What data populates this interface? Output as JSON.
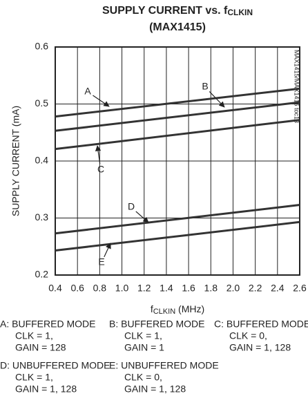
{
  "chart_data": {
    "type": "line",
    "title": [
      "SUPPLY CURRENT vs. f",
      "CLKIN"
    ],
    "subtitle": "(MAX1415)",
    "side_note": "MAX1415/MAX1416 toc13",
    "ylabel": "SUPPLY CURRENT (mA)",
    "xlabel": [
      "f",
      "CLKIN",
      " (MHz)"
    ],
    "x": [
      0.4,
      2.6
    ],
    "series": [
      {
        "name": "A",
        "color": "#333333",
        "values": [
          0.478,
          0.527
        ]
      },
      {
        "name": "B",
        "color": "#333333",
        "values": [
          0.453,
          0.503
        ]
      },
      {
        "name": "C",
        "color": "#333333",
        "values": [
          0.421,
          0.472
        ]
      },
      {
        "name": "D",
        "color": "#333333",
        "values": [
          0.273,
          0.323
        ]
      },
      {
        "name": "E",
        "color": "#333333",
        "values": [
          0.243,
          0.293
        ]
      }
    ],
    "xlim": [
      0.4,
      2.6
    ],
    "xticks": [
      0.4,
      0.6,
      0.8,
      {
        "value": 1,
        "label": "1.0"
      },
      1.2,
      1.4,
      1.6,
      1.8,
      {
        "value": 2,
        "label": "2.0"
      },
      2.2,
      2.4,
      2.6
    ],
    "ylim": [
      0.2,
      0.6
    ],
    "yticks": [
      0.2,
      0.3,
      0.4,
      0.5,
      0.6
    ],
    "grid": true,
    "notes": [
      {
        "name": "A: BUFFERED MODE",
        "lines": [
          "CLK = 1,",
          "GAIN = 128"
        ]
      },
      {
        "name": "B: BUFFERED MODE",
        "lines": [
          "CLK = 1,",
          "GAIN = 1"
        ]
      },
      {
        "name": "C: BUFFERED MODE",
        "lines": [
          "CLK = 0,",
          "GAIN = 1, 128"
        ]
      },
      {
        "name": "D: UNBUFFERED MODE",
        "lines": [
          "CLK = 1,",
          "GAIN = 1, 128"
        ]
      },
      {
        "name": "E: UNBUFFERED MODE",
        "lines": [
          "CLK = 0,",
          "GAIN = 1, 128"
        ]
      }
    ]
  }
}
